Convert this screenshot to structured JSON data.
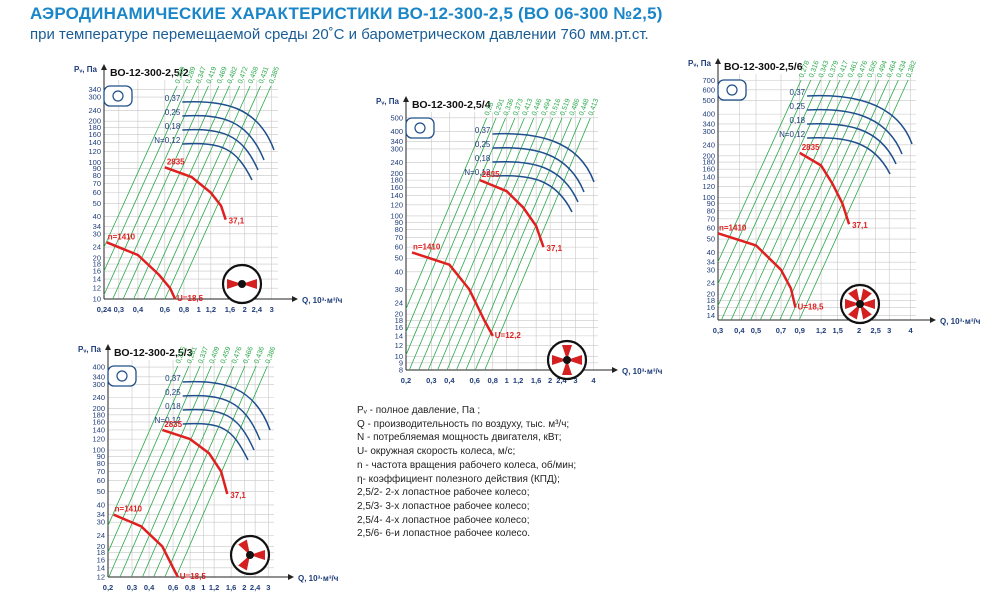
{
  "header": {
    "title": "АЭРОДИНАМИЧЕСКИЕ ХАРАКТЕРИСТИКИ ВО-12-300-2,5 (ВО 06-300 №2,5)",
    "subtitle": "при температуре перемещаемой среды 20˚С и барометрическом давлении 760 мм.рт.ст."
  },
  "legend": {
    "items": [
      "Pᵥ - полное давление, Па ;",
      "Q - производительность по воздуху, тыс. м³/ч;",
      "N - потребляемая мощность двигателя, кВт;",
      "U- окружная скорость колеса, м/с;",
      "n - частота вращения рабочего колеса, об/мин;",
      "η- коэффициент полезного действия (КПД);",
      "2,5/2- 2-х  лопастное рабочее колесо;",
      "2,5/3- 3-х  лопастное рабочее колесо;",
      "2,5/4- 4-х  лопастное рабочее колесо;",
      "2,5/6- 6-и  лопастное рабочее колесо."
    ]
  },
  "colors": {
    "title": "#1a86c8",
    "subtitle": "#1a5d96",
    "power_curves": "#1f4f8c",
    "efficiency_lines": "#2aa84a",
    "speed_curve": "#e02020",
    "grid": "#c8c8c8"
  },
  "chart_data": [
    {
      "type": "line",
      "log_scale": true,
      "title": "ВО-12-300-2,5/2",
      "ylabel": "Pᵥ, Па",
      "xlabel": "Q, 10³·м³/ч",
      "x_ticks": [
        "0,24",
        "0,3",
        "0,4",
        "0,6",
        "0,8",
        "1",
        "1,2",
        "1,6",
        "2",
        "2,4",
        "3"
      ],
      "y_ticks": [
        "10",
        "12",
        "14",
        "16",
        "18",
        "20",
        "24",
        "30",
        "34",
        "40",
        "50",
        "60",
        "70",
        "80",
        "90",
        "100",
        "120",
        "140",
        "160",
        "180",
        "200",
        "240",
        "300",
        "340"
      ],
      "xlim": [
        0.24,
        3.3
      ],
      "ylim": [
        10,
        400
      ],
      "power_labels": [
        "0,37",
        "0,25",
        "0,18",
        "N=0,12"
      ],
      "efficiency_labels": [
        "0,239",
        "0,289",
        "0,347",
        "0,419",
        "0,469",
        "0,482",
        "0,472",
        "0,458",
        "0,431",
        "0,385"
      ],
      "speed_labels": {
        "n_low": "n=1410",
        "n_high": "2835",
        "u_low": "U=18,5",
        "u_high": "37,1"
      },
      "series": [
        {
          "name": "n=1410",
          "x": [
            0.25,
            0.4,
            0.55,
            0.65,
            0.7
          ],
          "y": [
            26,
            21,
            15,
            12,
            10
          ]
        },
        {
          "name": "2835",
          "x": [
            0.6,
            0.9,
            1.2,
            1.4,
            1.5
          ],
          "y": [
            92,
            78,
            60,
            48,
            38
          ]
        }
      ]
    },
    {
      "type": "line",
      "log_scale": true,
      "title": "ВО-12-300-2,5/3",
      "ylabel": "Pᵥ, Па",
      "xlabel": "Q, 10³·м³/ч",
      "x_ticks": [
        "0,2",
        "0,3",
        "0,4",
        "0,6",
        "0,8",
        "1",
        "1,2",
        "1,6",
        "2",
        "2,4",
        "3"
      ],
      "y_ticks": [
        "12",
        "14",
        "16",
        "18",
        "20",
        "24",
        "30",
        "34",
        "40",
        "50",
        "60",
        "70",
        "80",
        "90",
        "100",
        "120",
        "140",
        "160",
        "180",
        "200",
        "240",
        "300",
        "340",
        "400"
      ],
      "xlim": [
        0.2,
        3.3
      ],
      "ylim": [
        12,
        450
      ],
      "power_labels": [
        "0,37",
        "0,25",
        "0,18",
        "N=0,12"
      ],
      "efficiency_labels": [
        "0,215",
        "0,281",
        "0,337",
        "0,409",
        "0,459",
        "0,476",
        "0,466",
        "0,436",
        "0,386"
      ],
      "speed_labels": {
        "n_low": "n=1410",
        "n_high": "2835",
        "u_low": "U=18,5",
        "u_high": "37,1"
      },
      "series": [
        {
          "name": "n=1410",
          "x": [
            0.22,
            0.35,
            0.5,
            0.6,
            0.65
          ],
          "y": [
            34,
            28,
            20,
            14,
            12
          ]
        },
        {
          "name": "2835",
          "x": [
            0.5,
            0.8,
            1.1,
            1.35,
            1.5
          ],
          "y": [
            140,
            120,
            95,
            70,
            48
          ]
        }
      ]
    },
    {
      "type": "line",
      "log_scale": true,
      "title": "ВО-12-300-2,5/4",
      "ylabel": "Pᵥ, Па",
      "xlabel": "Q, 10³·м³/ч",
      "x_ticks": [
        "0,2",
        "0,3",
        "0,4",
        "0,6",
        "0,8",
        "1",
        "1,2",
        "1,6",
        "2",
        "2,4",
        "3",
        "4"
      ],
      "y_ticks": [
        "8",
        "9",
        "10",
        "12",
        "14",
        "16",
        "18",
        "20",
        "24",
        "30",
        "40",
        "50",
        "60",
        "70",
        "80",
        "90",
        "100",
        "120",
        "140",
        "160",
        "180",
        "200",
        "240",
        "300",
        "340",
        "400",
        "500"
      ],
      "xlim": [
        0.2,
        4.3
      ],
      "ylim": [
        8,
        550
      ],
      "power_labels": [
        "0,37",
        "0,25",
        "0,18",
        "N=0,12"
      ],
      "efficiency_labels": [
        "0,23",
        "0,291",
        "0,336",
        "0,373",
        "0,413",
        "0,446",
        "0,494",
        "0,516",
        "0,519",
        "0,486",
        "0,448",
        "0,413"
      ],
      "speed_labels": {
        "n_low": "n=1410",
        "n_high": "2835",
        "u_low": "U=12,2",
        "u_high": "37,1"
      },
      "series": [
        {
          "name": "n=1410",
          "x": [
            0.22,
            0.4,
            0.55,
            0.7,
            0.8
          ],
          "y": [
            55,
            45,
            30,
            18,
            14
          ]
        },
        {
          "name": "2835",
          "x": [
            0.65,
            1.0,
            1.3,
            1.6,
            1.8
          ],
          "y": [
            180,
            150,
            115,
            85,
            60
          ]
        }
      ]
    },
    {
      "type": "line",
      "log_scale": true,
      "title": "ВО-12-300-2,5/6",
      "ylabel": "Pᵥ, Па",
      "xlabel": "Q, 10³·м³/ч",
      "x_ticks": [
        "0,3",
        "0,4",
        "0,5",
        "0,7",
        "0,9",
        "1,2",
        "1,5",
        "2",
        "2,5",
        "3",
        "4"
      ],
      "y_ticks": [
        "14",
        "16",
        "18",
        "20",
        "24",
        "30",
        "34",
        "40",
        "50",
        "60",
        "70",
        "80",
        "90",
        "100",
        "120",
        "140",
        "160",
        "180",
        "200",
        "240",
        "300",
        "340",
        "400",
        "500",
        "600",
        "700"
      ],
      "xlim": [
        0.3,
        4.3
      ],
      "ylim": [
        13,
        780
      ],
      "power_labels": [
        "0,37",
        "0,25",
        "0,18",
        "N=0,12"
      ],
      "efficiency_labels": [
        "0,278",
        "0,316",
        "0,343",
        "0,379",
        "0,417",
        "0,461",
        "0,476",
        "0,505",
        "0,494",
        "0,464",
        "0,434",
        "0,382"
      ],
      "speed_labels": {
        "n_low": "n=1410",
        "n_high": "2835",
        "u_low": "U=18,5",
        "u_high": "37,1"
      },
      "series": [
        {
          "name": "n=1410",
          "x": [
            0.3,
            0.5,
            0.7,
            0.8,
            0.85
          ],
          "y": [
            55,
            45,
            30,
            22,
            16
          ]
        },
        {
          "name": "2835",
          "x": [
            0.9,
            1.2,
            1.4,
            1.6,
            1.75
          ],
          "y": [
            210,
            170,
            125,
            90,
            64
          ]
        }
      ]
    }
  ]
}
